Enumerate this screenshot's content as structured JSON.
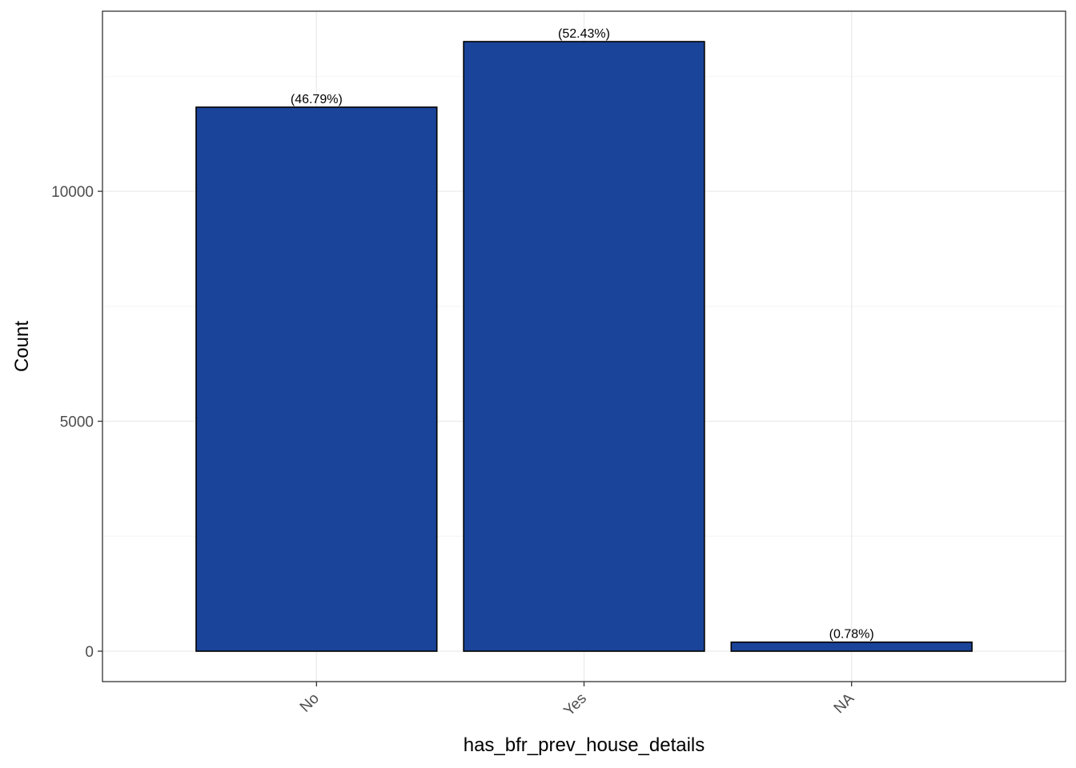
{
  "chart_data": {
    "type": "bar",
    "categories": [
      "No",
      "Yes",
      "NA"
    ],
    "values": [
      11829,
      13255,
      197
    ],
    "data_labels": [
      "(46.79%)",
      "(52.43%)",
      "(0.78%)"
    ],
    "title": "",
    "xlabel": "has_bfr_prev_house_details",
    "ylabel": "Count",
    "ylim": [
      0,
      13255
    ],
    "yticks": [
      0,
      5000,
      10000
    ],
    "ytick_labels": [
      "0",
      "5000",
      "10000"
    ],
    "grid": true,
    "legend": "none",
    "colors": {
      "bar_fill": "#1a4499",
      "bar_stroke": "#000000",
      "grid_major": "#ebebeb",
      "grid_minor": "#f4f4f4",
      "panel_border": "#333333",
      "tick_label": "#4d4d4d"
    }
  }
}
